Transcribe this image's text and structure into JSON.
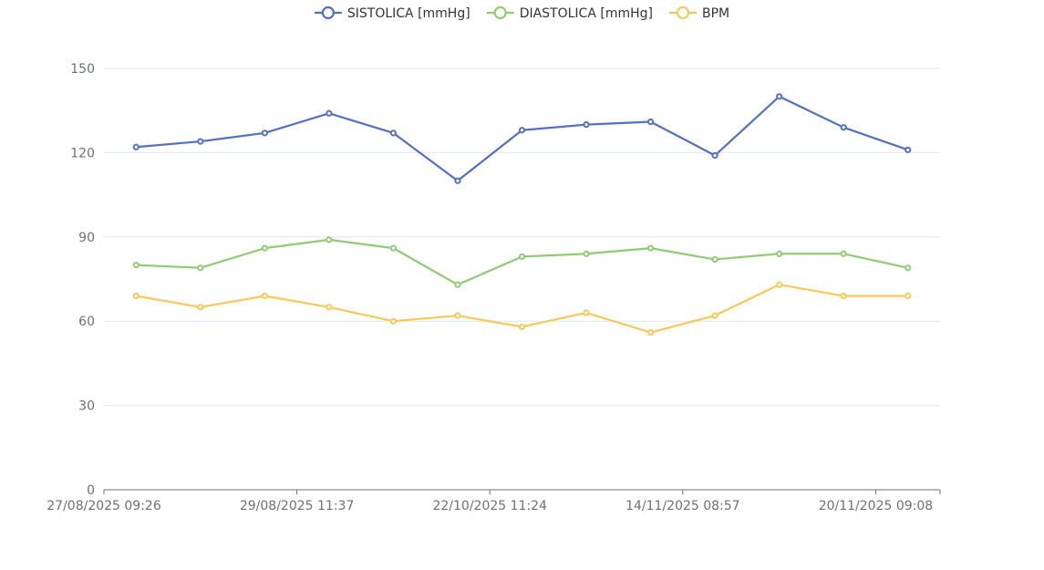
{
  "chart_data": {
    "type": "line",
    "categories": [
      "27/08/2025 09:26",
      "",
      "",
      "29/08/2025 11:37",
      "",
      "",
      "22/10/2025 11:24",
      "",
      "",
      "14/11/2025 08:57",
      "",
      "",
      "20/11/2025 09:08"
    ],
    "series": [
      {
        "name": "SISTOLICA [mmHg]",
        "color": "#5470c6",
        "values": [
          122,
          124,
          127,
          134,
          127,
          110,
          128,
          130,
          131,
          119,
          140,
          129,
          121
        ]
      },
      {
        "name": "DIASTOLICA [mmHg]",
        "color": "#91cc75",
        "values": [
          80,
          79,
          86,
          89,
          86,
          73,
          83,
          84,
          86,
          82,
          84,
          84,
          79
        ]
      },
      {
        "name": "BPM",
        "color": "#fac858",
        "values": [
          69,
          65,
          69,
          65,
          60,
          62,
          58,
          63,
          56,
          62,
          73,
          69,
          69
        ]
      }
    ],
    "x_tick_labels": [
      "27/08/2025 09:26",
      "29/08/2025 11:37",
      "22/10/2025 11:24",
      "14/11/2025 08:57",
      "20/11/2025 09:08"
    ],
    "y_ticks": [
      "0",
      "30",
      "60",
      "90",
      "120",
      "150"
    ],
    "ylim": [
      0,
      150
    ],
    "grid": true,
    "legend_position": "top-center",
    "title": "",
    "xlabel": "",
    "ylabel": ""
  }
}
